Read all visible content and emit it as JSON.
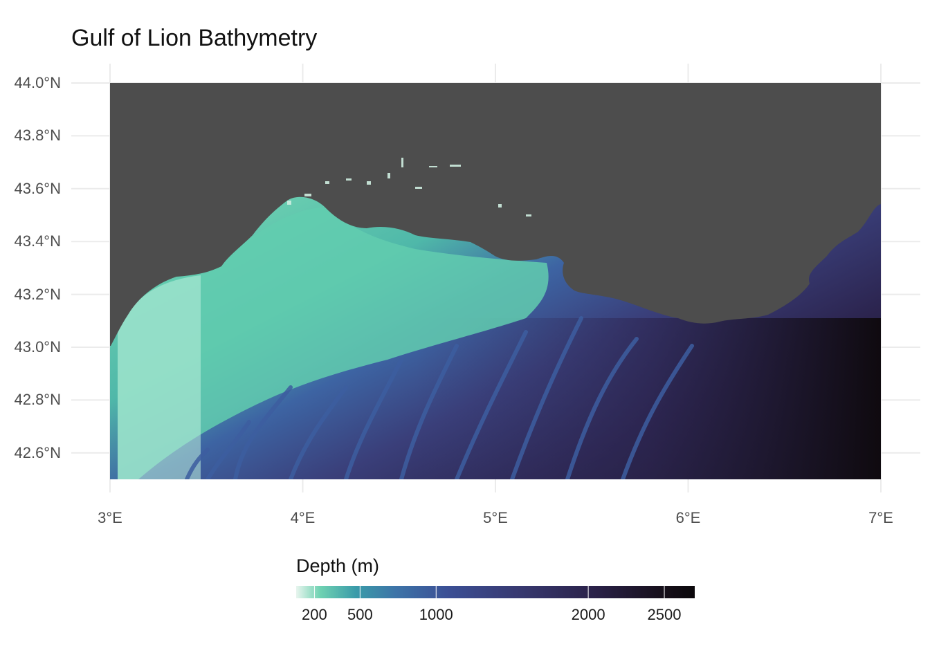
{
  "title": "Gulf of Lion Bathymetry",
  "y_axis": {
    "ticks": [
      {
        "value": 44.0,
        "label": "44.0°N"
      },
      {
        "value": 43.8,
        "label": "43.8°N"
      },
      {
        "value": 43.6,
        "label": "43.6°N"
      },
      {
        "value": 43.4,
        "label": "43.4°N"
      },
      {
        "value": 43.2,
        "label": "43.2°N"
      },
      {
        "value": 43.0,
        "label": "43.0°N"
      },
      {
        "value": 42.8,
        "label": "42.8°N"
      },
      {
        "value": 42.6,
        "label": "42.6°N"
      }
    ],
    "range": [
      42.5,
      44.0
    ]
  },
  "x_axis": {
    "ticks": [
      {
        "value": 3,
        "label": "3°E"
      },
      {
        "value": 4,
        "label": "4°E"
      },
      {
        "value": 5,
        "label": "5°E"
      },
      {
        "value": 6,
        "label": "6°E"
      },
      {
        "value": 7,
        "label": "7°E"
      }
    ],
    "range": [
      3,
      7
    ]
  },
  "legend": {
    "title": "Depth (m)",
    "min": 80,
    "max": 2700,
    "ticks": [
      {
        "value": 200,
        "label": "200"
      },
      {
        "value": 500,
        "label": "500"
      },
      {
        "value": 1000,
        "label": "1000"
      },
      {
        "value": 2000,
        "label": "2000"
      },
      {
        "value": 2500,
        "label": "2500"
      }
    ]
  },
  "colors": {
    "land": "#4d4d4d",
    "grid": "#ebebeb",
    "ramp": [
      "#e8f5ee",
      "#6fd2b2",
      "#4fb8a9",
      "#3a8ea6",
      "#3d64a3",
      "#3a3f7a",
      "#2c2550",
      "#161018",
      "#0d0a0d"
    ]
  }
}
